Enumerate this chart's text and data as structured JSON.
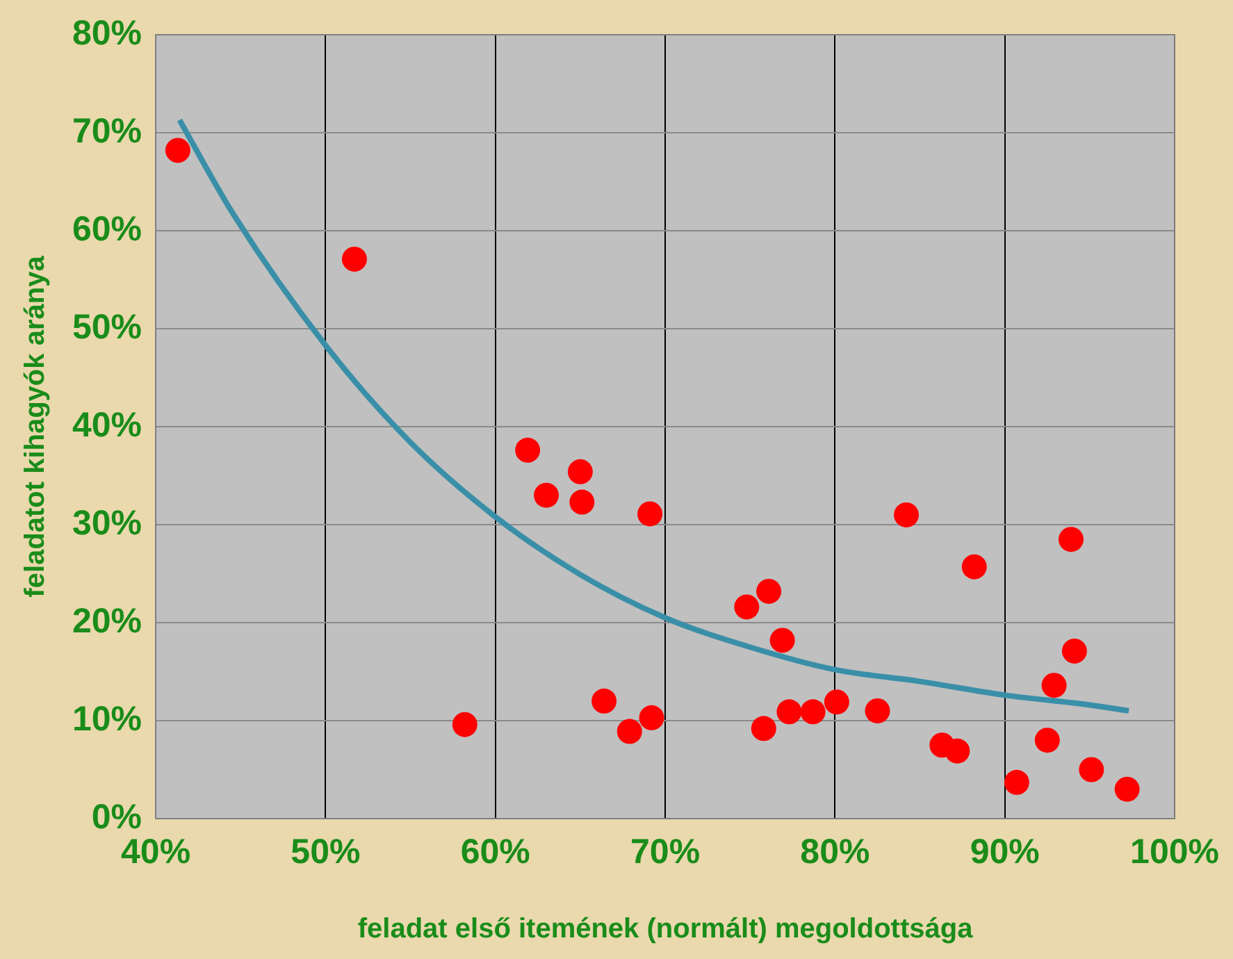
{
  "chart_data": {
    "type": "scatter",
    "xlabel": "feladat első itemének (normált) megoldottsága",
    "ylabel": "feladatot kihagyók aránya",
    "xlim": [
      40,
      100
    ],
    "ylim": [
      0,
      80
    ],
    "xticks": [
      {
        "value": 40,
        "label": "40%"
      },
      {
        "value": 50,
        "label": "50%"
      },
      {
        "value": 60,
        "label": "60%"
      },
      {
        "value": 70,
        "label": "70%"
      },
      {
        "value": 80,
        "label": "80%"
      },
      {
        "value": 90,
        "label": "90%"
      },
      {
        "value": 100,
        "label": "100%"
      }
    ],
    "yticks": [
      {
        "value": 0,
        "label": "0%"
      },
      {
        "value": 10,
        "label": "10%"
      },
      {
        "value": 20,
        "label": "20%"
      },
      {
        "value": 30,
        "label": "30%"
      },
      {
        "value": 40,
        "label": "40%"
      },
      {
        "value": 50,
        "label": "50%"
      },
      {
        "value": 60,
        "label": "60%"
      },
      {
        "value": 70,
        "label": "70%"
      },
      {
        "value": 80,
        "label": "80%"
      }
    ],
    "grid": true,
    "series": [
      {
        "marker": "circle",
        "color": "#ff0000",
        "x": [
          41.3,
          51.7,
          58.2,
          61.9,
          63.0,
          65.0,
          65.1,
          69.1,
          66.4,
          67.9,
          69.2,
          74.8,
          76.1,
          76.9,
          75.8,
          77.3,
          78.7,
          80.1,
          82.5,
          84.2,
          86.3,
          87.2,
          88.2,
          90.7,
          92.5,
          92.9,
          93.9,
          94.1,
          95.1,
          97.2
        ],
        "values": [
          68.2,
          57.1,
          9.6,
          37.6,
          33.0,
          35.4,
          32.3,
          31.1,
          12.0,
          8.9,
          10.3,
          21.6,
          23.2,
          18.2,
          9.2,
          10.9,
          10.9,
          11.9,
          11.0,
          31.0,
          7.5,
          6.9,
          25.7,
          3.7,
          8.0,
          13.6,
          28.5,
          17.1,
          5.0,
          3.0
        ]
      },
      {
        "type": "line",
        "color": "#3a8fa8",
        "x": [
          41.4,
          44.6,
          50,
          55,
          60,
          65,
          70,
          75,
          80,
          85,
          90,
          95,
          97.3
        ],
        "values": [
          71.3,
          61.6,
          48.3,
          38.4,
          30.8,
          24.9,
          20.5,
          17.5,
          15.2,
          14.0,
          12.6,
          11.6,
          11.0
        ]
      }
    ]
  }
}
